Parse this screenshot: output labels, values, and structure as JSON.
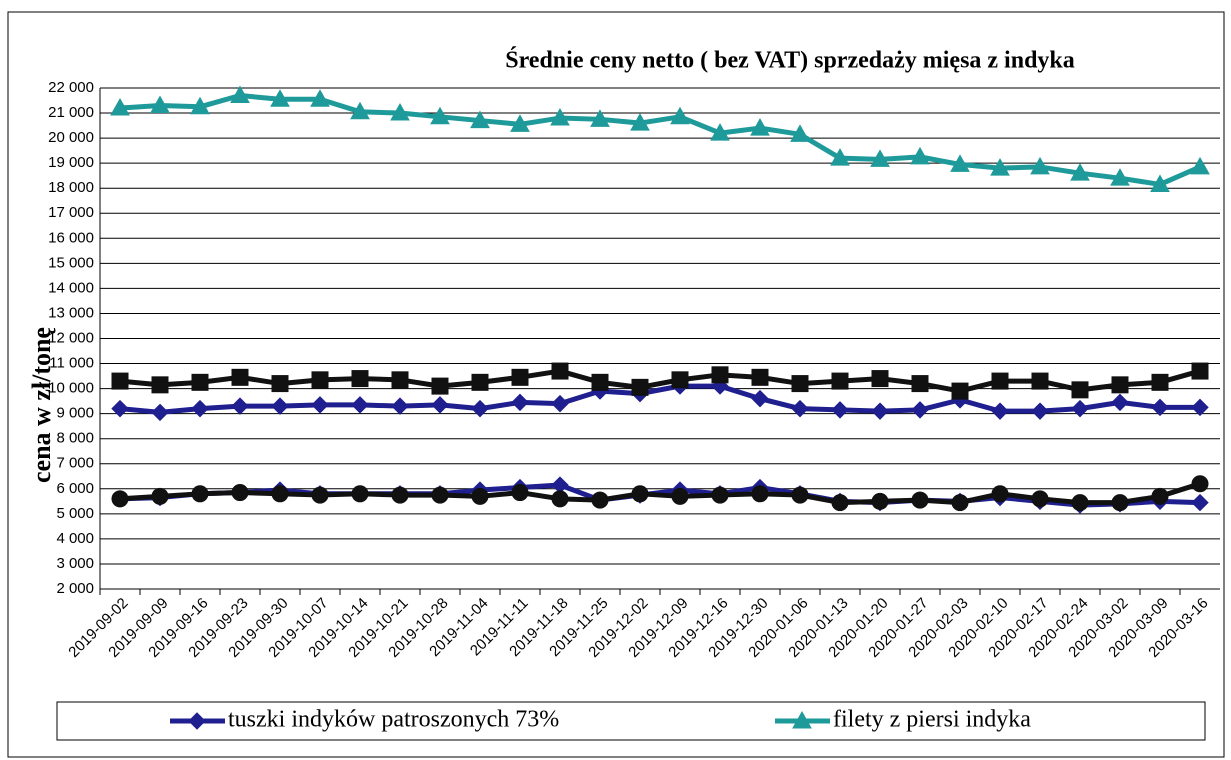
{
  "chart_data": {
    "type": "line",
    "title": "Średnie ceny netto ( bez VAT) sprzedaży mięsa z indyka",
    "y_label": "cena w zł/tonę",
    "categories": [
      "2019-09-02",
      "2019-09-09",
      "2019-09-16",
      "2019-09-23",
      "2019-09-30",
      "2019-10-07",
      "2019-10-14",
      "2019-10-21",
      "2019-10-28",
      "2019-11-04",
      "2019-11-11",
      "2019-11-18",
      "2019-11-25",
      "2019-12-02",
      "2019-12-09",
      "2019-12-16",
      "2019-12-30",
      "2020-01-06",
      "2020-01-13",
      "2020-01-20",
      "2020-01-27",
      "2020-02-03",
      "2020-02-10",
      "2020-02-17",
      "2020-02-24",
      "2020-03-02",
      "2020-03-09",
      "2020-03-16"
    ],
    "series": [
      {
        "name": "tuszki indyków patroszonych 73%",
        "color": "#1f1f8f",
        "marker": "diamond",
        "values": [
          9200,
          9050,
          9200,
          9300,
          9300,
          9350,
          9350,
          9300,
          9350,
          9200,
          9450,
          9400,
          9900,
          9800,
          10100,
          10100,
          9600,
          9200,
          9150,
          9100,
          9150,
          9550,
          9100,
          9100,
          9200,
          9450,
          9250,
          9250
        ]
      },
      {
        "name": "filety z piersi indyka",
        "color": "#1f9a9a",
        "marker": "triangle",
        "values": [
          21200,
          21300,
          21250,
          21700,
          21550,
          21550,
          21050,
          21000,
          20850,
          20700,
          20550,
          20800,
          20750,
          20600,
          20850,
          20200,
          20400,
          20150,
          19200,
          19150,
          19250,
          18950,
          18800,
          18850,
          18600,
          18400,
          18150,
          18850
        ]
      },
      {
        "color": "#111111",
        "marker": "square",
        "values": [
          10300,
          10150,
          10250,
          10450,
          10200,
          10350,
          10400,
          10350,
          10100,
          10250,
          10450,
          10700,
          10250,
          10050,
          10350,
          10550,
          10450,
          10200,
          10300,
          10400,
          10200,
          9900,
          10300,
          10300,
          9950,
          10150,
          10250,
          10700
        ]
      },
      {
        "color": "#1f1f8f",
        "marker": "diamond",
        "values": [
          5600,
          5650,
          5800,
          5850,
          5950,
          5800,
          5800,
          5800,
          5800,
          5950,
          6050,
          6150,
          5550,
          5750,
          5950,
          5800,
          6050,
          5800,
          5500,
          5450,
          5550,
          5500,
          5650,
          5500,
          5350,
          5400,
          5500,
          5450
        ]
      },
      {
        "color": "#111111",
        "marker": "circle",
        "values": [
          5600,
          5700,
          5800,
          5850,
          5800,
          5750,
          5800,
          5750,
          5750,
          5700,
          5850,
          5600,
          5550,
          5800,
          5700,
          5750,
          5800,
          5750,
          5450,
          5500,
          5550,
          5450,
          5800,
          5600,
          5450,
          5450,
          5700,
          6200
        ]
      }
    ],
    "ylim": [
      2000,
      22000
    ],
    "yticks": [
      {
        "value": 2000,
        "label": "2 000"
      },
      {
        "value": 3000,
        "label": "3 000"
      },
      {
        "value": 4000,
        "label": "4 000"
      },
      {
        "value": 5000,
        "label": "5 000"
      },
      {
        "value": 6000,
        "label": "6 000"
      },
      {
        "value": 7000,
        "label": "7 000"
      },
      {
        "value": 8000,
        "label": "8 000"
      },
      {
        "value": 9000,
        "label": "9 000"
      },
      {
        "value": 10000,
        "label": "10 000"
      },
      {
        "value": 11000,
        "label": "11 000"
      },
      {
        "value": 12000,
        "label": "12 000"
      },
      {
        "value": 13000,
        "label": "13 000"
      },
      {
        "value": 14000,
        "label": "14 000"
      },
      {
        "value": 15000,
        "label": "15 000"
      },
      {
        "value": 16000,
        "label": "16 000"
      },
      {
        "value": 17000,
        "label": "17 000"
      },
      {
        "value": 18000,
        "label": "18 000"
      },
      {
        "value": 19000,
        "label": "19 000"
      },
      {
        "value": 20000,
        "label": "20 000"
      },
      {
        "value": 21000,
        "label": "21 000"
      },
      {
        "value": 22000,
        "label": "22 000"
      }
    ],
    "grid": true
  }
}
